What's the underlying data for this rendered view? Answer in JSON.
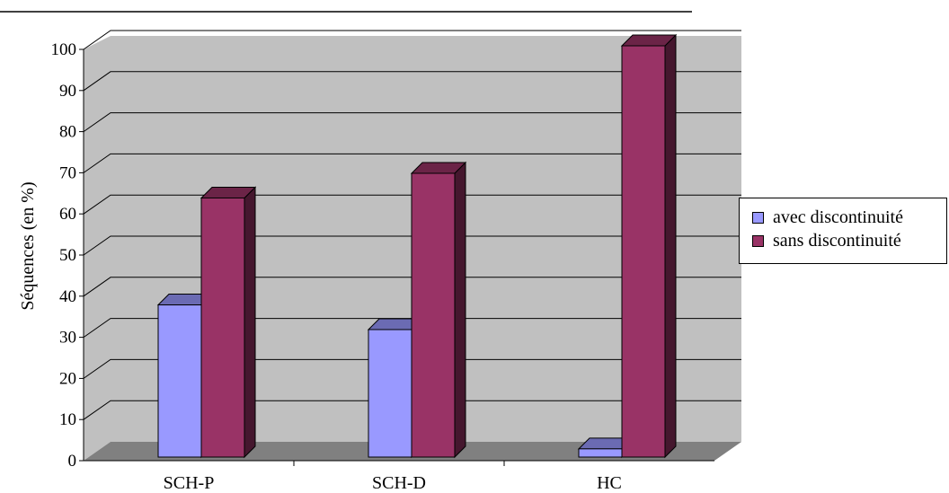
{
  "colors": {
    "series_1": "#9999ff",
    "series_2": "#993366",
    "wall": "#c0c0c0",
    "floor": "#808080"
  },
  "chart_data": {
    "type": "bar",
    "title": "",
    "xlabel": "",
    "ylabel": "Séquences (en %)",
    "ylim": [
      0,
      100
    ],
    "yticks": [
      "0",
      "10",
      "20",
      "30",
      "40",
      "50",
      "60",
      "70",
      "80",
      "90",
      "100"
    ],
    "categories": [
      "SCH-P",
      "SCH-D",
      "HC"
    ],
    "series": [
      {
        "name": "avec discontinuité",
        "values": [
          37,
          31,
          2
        ]
      },
      {
        "name": "sans discontinuité",
        "values": [
          63,
          69,
          100
        ]
      }
    ],
    "grid": true,
    "legend_position": "right",
    "style": "3d-column"
  }
}
